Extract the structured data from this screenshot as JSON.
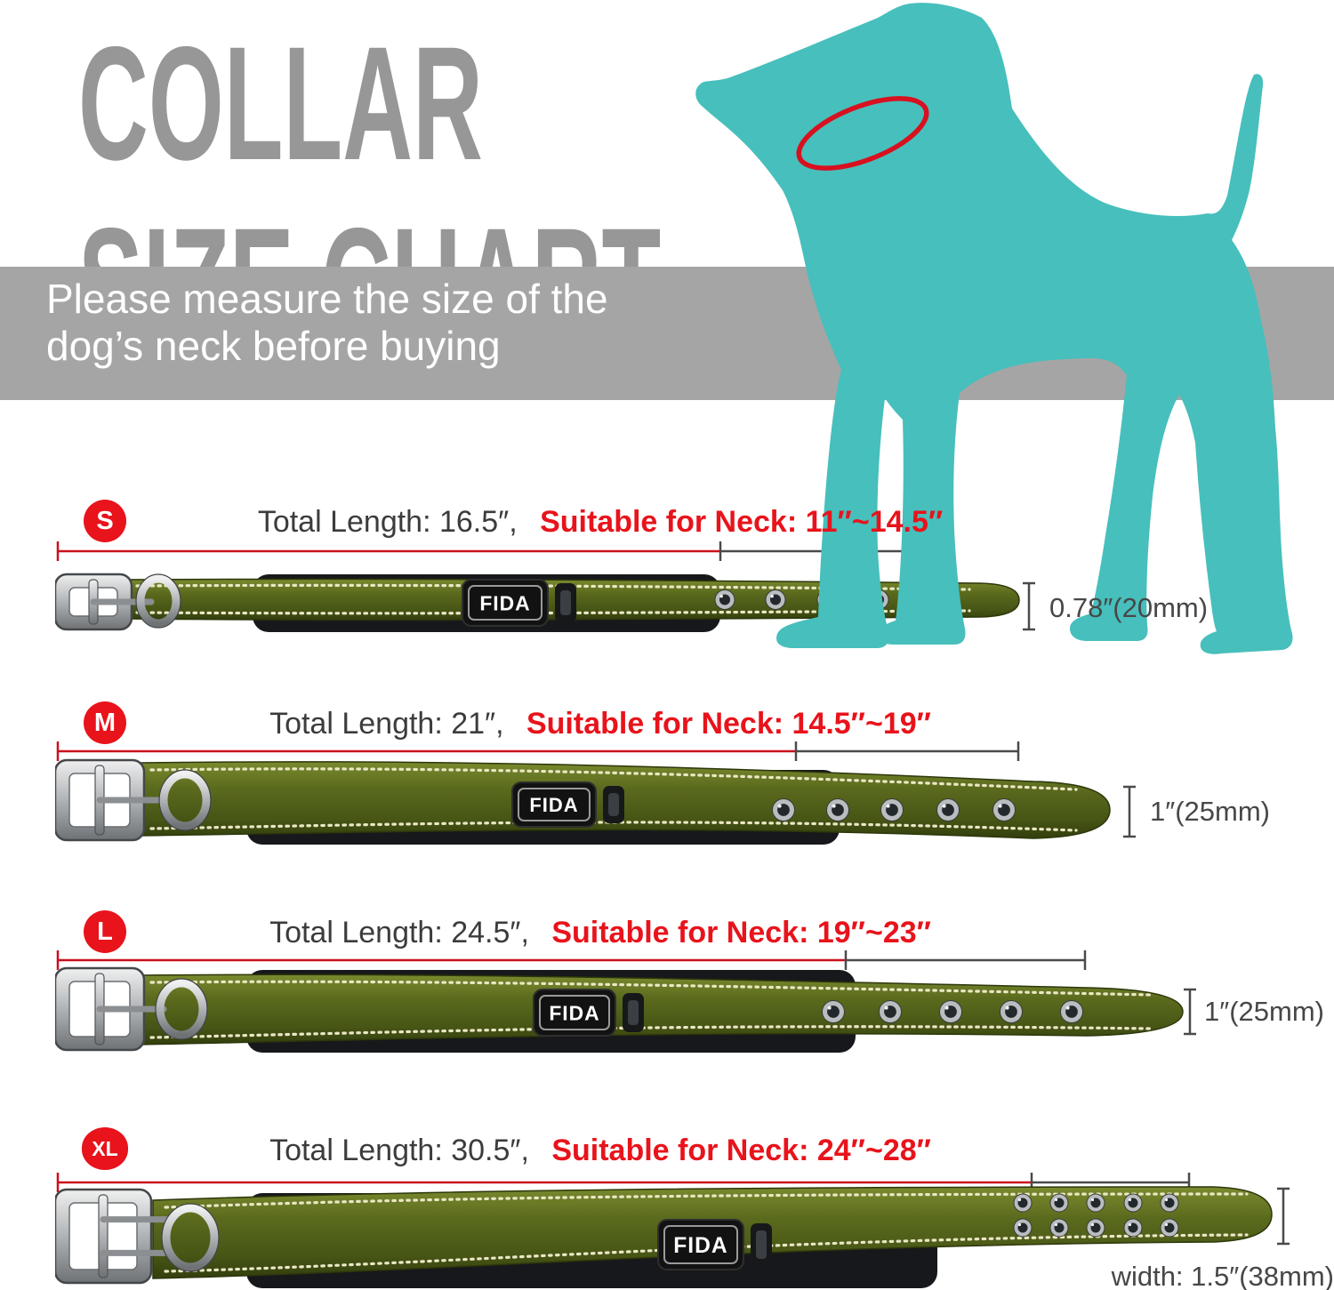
{
  "title": {
    "line1": "COLLAR",
    "line2": "SIZE CHART"
  },
  "banner": {
    "line1": "Please measure the size of the",
    "line2": "dog’s neck before buying"
  },
  "brand": "FIDA",
  "colors": {
    "teal": "#47bfbc",
    "red": "#e8131b",
    "title_gray": "#979797",
    "banner_gray": "#a5a5a5",
    "collar_green": "#5a6a1d",
    "pad_black": "#17181b"
  },
  "dog_icon": "dog-silhouette-with-collar-ring",
  "sizes": [
    {
      "label": "S",
      "total_length": "Total Length: 16.5″,",
      "neck": "Suitable for Neck: 11″~14.5″",
      "width": "0.78″(20mm)"
    },
    {
      "label": "M",
      "total_length": "Total Length: 21″,",
      "neck": "Suitable for Neck: 14.5″~19″",
      "width": "1″(25mm)"
    },
    {
      "label": "L",
      "total_length": "Total Length: 24.5″,",
      "neck": "Suitable for Neck: 19″~23″",
      "width": "1″(25mm)"
    },
    {
      "label": "XL",
      "total_length": "Total Length: 30.5″,",
      "neck": "Suitable for Neck: 24″~28″",
      "width": "width: 1.5″(38mm)"
    }
  ]
}
